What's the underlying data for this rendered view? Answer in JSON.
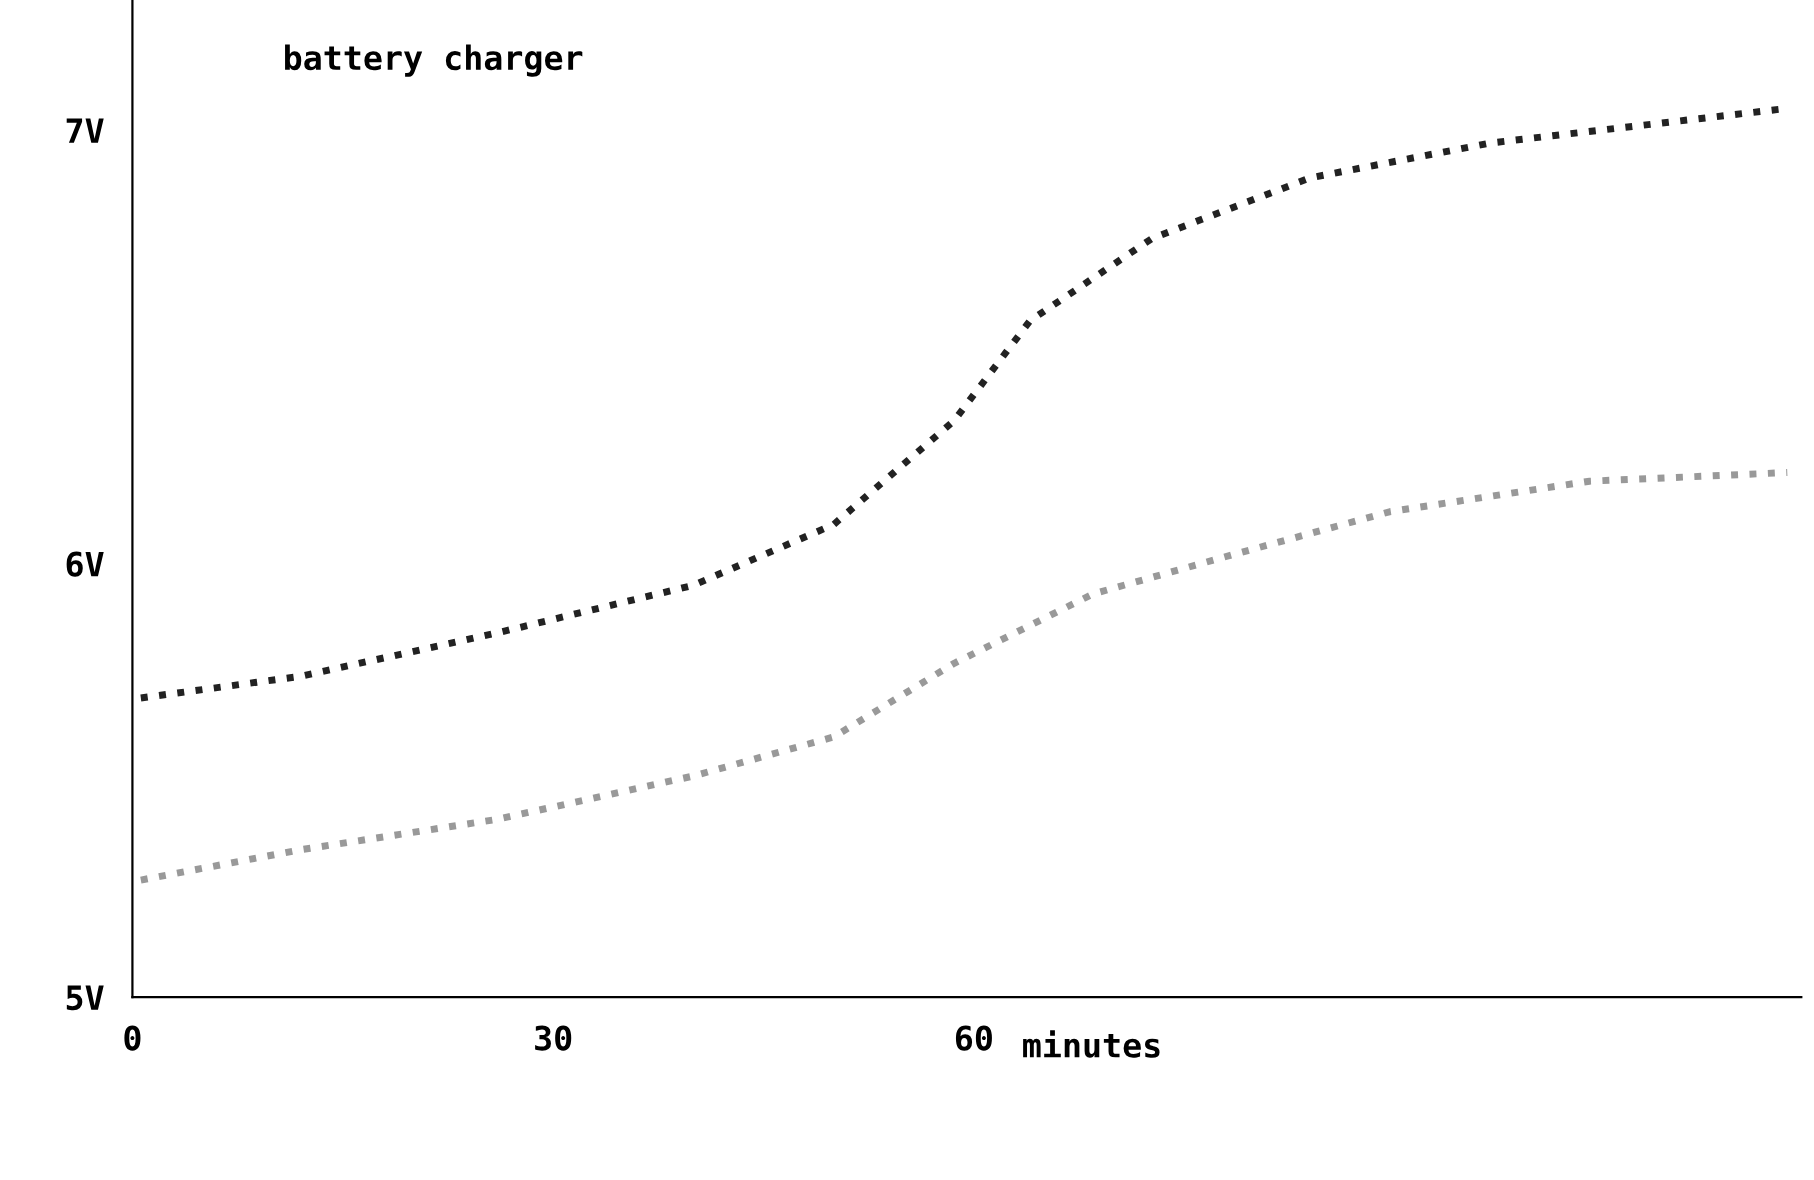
{
  "chart_data": {
    "type": "line",
    "xlabel": "minutes",
    "annotations": [
      "battery charger"
    ],
    "xlim": [
      0,
      119
    ],
    "ylim": [
      5,
      7.3
    ],
    "xticks": [
      0,
      30,
      60
    ],
    "yticks": [
      {
        "value": 5,
        "label": "5V"
      },
      {
        "value": 6,
        "label": "6V"
      },
      {
        "value": 7,
        "label": "7V"
      }
    ],
    "grid": false,
    "legend": false,
    "marker": "none",
    "line_style": "dotted",
    "series": [
      {
        "color": "#222222",
        "x": [
          0.6,
          12,
          26,
          40,
          50,
          58.6,
          64,
          72.7,
          84,
          96.8,
          118
        ],
        "values": [
          5.69,
          5.74,
          5.84,
          5.95,
          6.09,
          6.33,
          6.56,
          6.75,
          6.89,
          6.97,
          7.05
        ]
      },
      {
        "color": "#999999",
        "x": [
          0.6,
          12,
          26,
          40,
          50,
          58.6,
          68.5,
          78.4,
          89.7,
          103.9,
          118
        ],
        "values": [
          5.27,
          5.34,
          5.41,
          5.51,
          5.6,
          5.77,
          5.93,
          6.02,
          6.12,
          6.19,
          6.21
        ]
      }
    ]
  }
}
